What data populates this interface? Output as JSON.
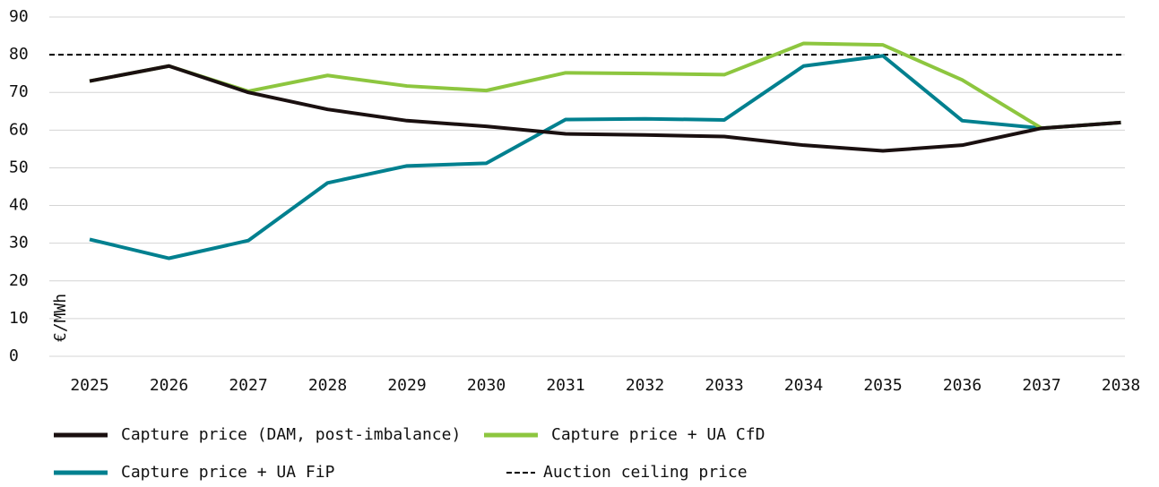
{
  "chart_data": {
    "type": "line",
    "y_label": "€/MWh",
    "categories": [
      "2025",
      "2026",
      "2027",
      "2028",
      "2029",
      "2030",
      "2031",
      "2032",
      "2033",
      "2034",
      "2035",
      "2036",
      "2037",
      "2038"
    ],
    "series": [
      {
        "name": "Capture price (DAM, post-imbalance)",
        "color": "#1a1010",
        "values": [
          73,
          77,
          70,
          65.5,
          62.5,
          61,
          59,
          58.7,
          58.3,
          56,
          54.5,
          56,
          60.5,
          62
        ]
      },
      {
        "name": "Capture price + UA CfD",
        "color": "#8dc63f",
        "values": [
          73,
          77,
          70.3,
          74.5,
          71.7,
          70.5,
          75.2,
          75,
          74.7,
          83,
          82.6,
          73.3,
          60.5,
          62
        ]
      },
      {
        "name": "Capture price + UA FiP",
        "color": "#00808f",
        "values": [
          31,
          26,
          30.7,
          46,
          50.5,
          51.2,
          62.8,
          63,
          62.7,
          77,
          79.7,
          62.5,
          60.5,
          62
        ]
      }
    ],
    "reference_line": {
      "name": "Auction ceiling price",
      "value": 80,
      "color": "#000000"
    },
    "ylim": [
      0,
      90
    ],
    "yticks": [
      0,
      10,
      20,
      30,
      40,
      50,
      60,
      70,
      80,
      90
    ],
    "grid": true
  }
}
